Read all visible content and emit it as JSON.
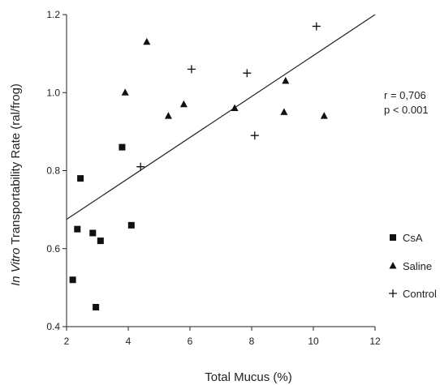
{
  "chart_data": {
    "type": "scatter",
    "xlabel": "Total Mucus (%)",
    "ylabel_italic": "In Vitro",
    "ylabel_rest": " Transportability Rate (ral/frog)",
    "xlim": [
      2,
      12
    ],
    "ylim": [
      0.4,
      1.2
    ],
    "xticks": [
      2,
      4,
      6,
      8,
      10,
      12
    ],
    "yticks": [
      0.4,
      0.6,
      0.8,
      1.0,
      1.2
    ],
    "ytick_labels": [
      "0.4",
      "0.6",
      "0.8",
      "1.0",
      "1.2"
    ],
    "grid": false,
    "legend_position": "right",
    "annotations": {
      "r": "r = 0,706",
      "p": "p < 0.001"
    },
    "regression_line": {
      "x": [
        2,
        12
      ],
      "y": [
        0.675,
        1.2
      ]
    },
    "series": [
      {
        "name": "CsA",
        "marker": "square",
        "points": [
          [
            2.2,
            0.52
          ],
          [
            2.35,
            0.65
          ],
          [
            2.45,
            0.78
          ],
          [
            2.85,
            0.64
          ],
          [
            2.95,
            0.45
          ],
          [
            3.1,
            0.62
          ],
          [
            3.8,
            0.86
          ],
          [
            4.1,
            0.66
          ]
        ]
      },
      {
        "name": "Saline",
        "marker": "triangle",
        "points": [
          [
            3.9,
            1.0
          ],
          [
            4.6,
            1.13
          ],
          [
            5.3,
            0.94
          ],
          [
            5.8,
            0.97
          ],
          [
            7.45,
            0.96
          ],
          [
            9.05,
            0.95
          ],
          [
            9.1,
            1.03
          ],
          [
            10.35,
            0.94
          ]
        ]
      },
      {
        "name": "Control",
        "marker": "plus",
        "points": [
          [
            4.4,
            0.81
          ],
          [
            6.05,
            1.06
          ],
          [
            7.85,
            1.05
          ],
          [
            8.1,
            0.89
          ],
          [
            10.1,
            1.17
          ]
        ]
      }
    ]
  }
}
